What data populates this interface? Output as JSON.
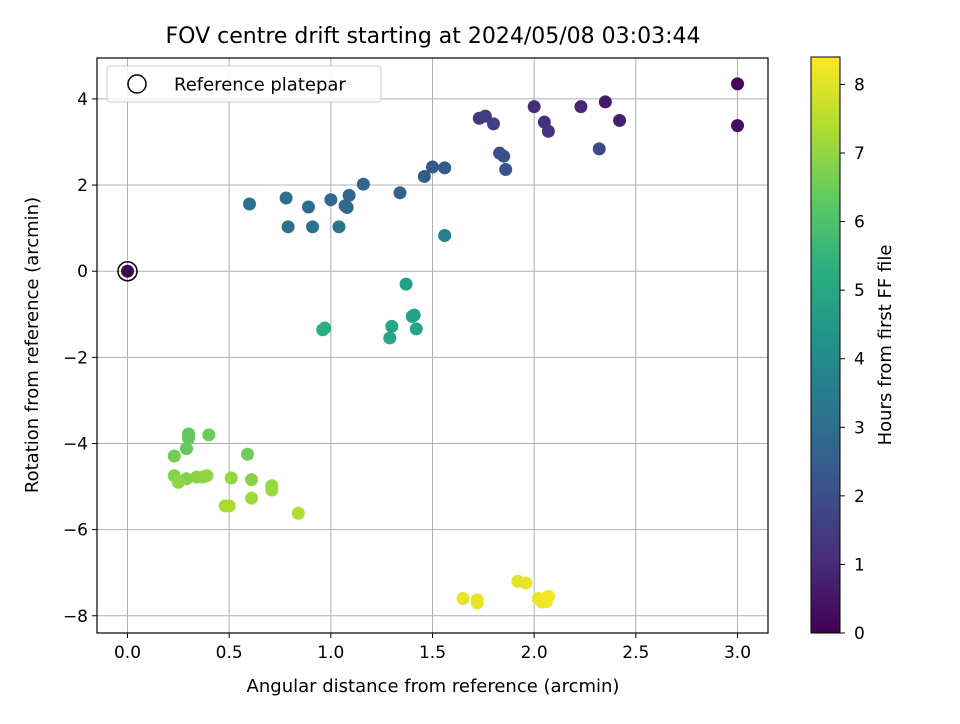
{
  "chart_data": {
    "type": "scatter",
    "title": "FOV centre drift starting at 2024/05/08 03:03:44",
    "xlabel": "Angular distance from reference (arcmin)",
    "ylabel": "Rotation from reference (arcmin)",
    "xlim": [
      -0.15,
      3.15
    ],
    "ylim": [
      -8.4,
      4.95
    ],
    "xticks": [
      0.0,
      0.5,
      1.0,
      1.5,
      2.0,
      2.5,
      3.0
    ],
    "xtick_labels": [
      "0.0",
      "0.5",
      "1.0",
      "1.5",
      "2.0",
      "2.5",
      "3.0"
    ],
    "yticks": [
      -8,
      -6,
      -4,
      -2,
      0,
      2,
      4
    ],
    "ytick_labels": [
      "−8",
      "−6",
      "−4",
      "−2",
      "0",
      "2",
      "4"
    ],
    "grid": true,
    "legend": {
      "placement": "upper-left",
      "entries": [
        "Reference platepar"
      ]
    },
    "reference_point": {
      "x": 0.0,
      "y": 0.0,
      "label": "Reference platepar"
    },
    "colorbar": {
      "label": "Hours from first FF file",
      "range": [
        0,
        8.4
      ],
      "ticks": [
        0,
        1,
        2,
        3,
        4,
        5,
        6,
        7,
        8
      ],
      "tick_labels": [
        "0",
        "1",
        "2",
        "3",
        "4",
        "5",
        "6",
        "7",
        "8"
      ],
      "colormap": "viridis"
    },
    "points": [
      {
        "x": 0.0,
        "y": 0.0,
        "c": 0.0
      },
      {
        "x": 3.0,
        "y": 4.35,
        "c": 0.15
      },
      {
        "x": 3.0,
        "y": 3.38,
        "c": 0.3
      },
      {
        "x": 2.35,
        "y": 3.93,
        "c": 0.6
      },
      {
        "x": 2.42,
        "y": 3.5,
        "c": 0.75
      },
      {
        "x": 2.23,
        "y": 3.82,
        "c": 0.9
      },
      {
        "x": 2.0,
        "y": 3.82,
        "c": 1.05
      },
      {
        "x": 2.05,
        "y": 3.46,
        "c": 1.15
      },
      {
        "x": 2.07,
        "y": 3.25,
        "c": 1.25
      },
      {
        "x": 1.73,
        "y": 3.55,
        "c": 1.4
      },
      {
        "x": 1.76,
        "y": 3.6,
        "c": 1.5
      },
      {
        "x": 1.8,
        "y": 3.42,
        "c": 1.6
      },
      {
        "x": 2.32,
        "y": 2.84,
        "c": 1.9
      },
      {
        "x": 1.83,
        "y": 2.74,
        "c": 2.0
      },
      {
        "x": 1.85,
        "y": 2.67,
        "c": 2.1
      },
      {
        "x": 1.86,
        "y": 2.36,
        "c": 2.2
      },
      {
        "x": 1.5,
        "y": 2.42,
        "c": 2.3
      },
      {
        "x": 1.56,
        "y": 2.4,
        "c": 2.4
      },
      {
        "x": 1.46,
        "y": 2.2,
        "c": 2.5
      },
      {
        "x": 1.34,
        "y": 1.82,
        "c": 2.6
      },
      {
        "x": 1.16,
        "y": 2.02,
        "c": 2.75
      },
      {
        "x": 1.09,
        "y": 1.76,
        "c": 2.85
      },
      {
        "x": 1.0,
        "y": 1.66,
        "c": 2.9
      },
      {
        "x": 1.07,
        "y": 1.52,
        "c": 2.95
      },
      {
        "x": 1.08,
        "y": 1.48,
        "c": 3.0
      },
      {
        "x": 0.89,
        "y": 1.49,
        "c": 3.05
      },
      {
        "x": 0.78,
        "y": 1.7,
        "c": 3.1
      },
      {
        "x": 0.6,
        "y": 1.56,
        "c": 3.15
      },
      {
        "x": 0.79,
        "y": 1.03,
        "c": 3.2
      },
      {
        "x": 0.91,
        "y": 1.03,
        "c": 3.25
      },
      {
        "x": 1.04,
        "y": 1.03,
        "c": 3.3
      },
      {
        "x": 1.56,
        "y": 0.83,
        "c": 3.6
      },
      {
        "x": 1.37,
        "y": -0.3,
        "c": 4.75
      },
      {
        "x": 1.4,
        "y": -1.05,
        "c": 4.85
      },
      {
        "x": 1.41,
        "y": -1.02,
        "c": 4.9
      },
      {
        "x": 1.42,
        "y": -1.34,
        "c": 4.95
      },
      {
        "x": 1.3,
        "y": -1.28,
        "c": 5.0
      },
      {
        "x": 1.29,
        "y": -1.55,
        "c": 5.05
      },
      {
        "x": 0.97,
        "y": -1.32,
        "c": 5.25
      },
      {
        "x": 0.96,
        "y": -1.36,
        "c": 5.3
      },
      {
        "x": 0.3,
        "y": -3.78,
        "c": 6.3
      },
      {
        "x": 0.3,
        "y": -3.88,
        "c": 6.35
      },
      {
        "x": 0.29,
        "y": -4.12,
        "c": 6.4
      },
      {
        "x": 0.4,
        "y": -3.8,
        "c": 6.5
      },
      {
        "x": 0.59,
        "y": -4.25,
        "c": 6.55
      },
      {
        "x": 0.23,
        "y": -4.29,
        "c": 6.6
      },
      {
        "x": 0.23,
        "y": -4.75,
        "c": 6.8
      },
      {
        "x": 0.29,
        "y": -4.82,
        "c": 6.85
      },
      {
        "x": 0.34,
        "y": -4.78,
        "c": 6.9
      },
      {
        "x": 0.37,
        "y": -4.78,
        "c": 6.95
      },
      {
        "x": 0.39,
        "y": -4.75,
        "c": 7.0
      },
      {
        "x": 0.25,
        "y": -4.9,
        "c": 7.0
      },
      {
        "x": 0.61,
        "y": -4.84,
        "c": 6.9
      },
      {
        "x": 0.51,
        "y": -4.8,
        "c": 7.05
      },
      {
        "x": 0.71,
        "y": -4.98,
        "c": 7.1
      },
      {
        "x": 0.71,
        "y": -5.08,
        "c": 7.15
      },
      {
        "x": 0.61,
        "y": -5.27,
        "c": 7.2
      },
      {
        "x": 0.48,
        "y": -5.45,
        "c": 7.3
      },
      {
        "x": 0.5,
        "y": -5.45,
        "c": 7.35
      },
      {
        "x": 0.84,
        "y": -5.62,
        "c": 7.45
      },
      {
        "x": 1.65,
        "y": -7.6,
        "c": 8.1
      },
      {
        "x": 1.72,
        "y": -7.63,
        "c": 8.15
      },
      {
        "x": 1.72,
        "y": -7.7,
        "c": 8.15
      },
      {
        "x": 1.92,
        "y": -7.2,
        "c": 8.05
      },
      {
        "x": 1.96,
        "y": -7.24,
        "c": 8.1
      },
      {
        "x": 2.02,
        "y": -7.6,
        "c": 8.2
      },
      {
        "x": 2.04,
        "y": -7.68,
        "c": 8.2
      },
      {
        "x": 2.06,
        "y": -7.58,
        "c": 8.25
      },
      {
        "x": 2.06,
        "y": -7.67,
        "c": 8.25
      },
      {
        "x": 2.07,
        "y": -7.55,
        "c": 8.3
      }
    ]
  }
}
